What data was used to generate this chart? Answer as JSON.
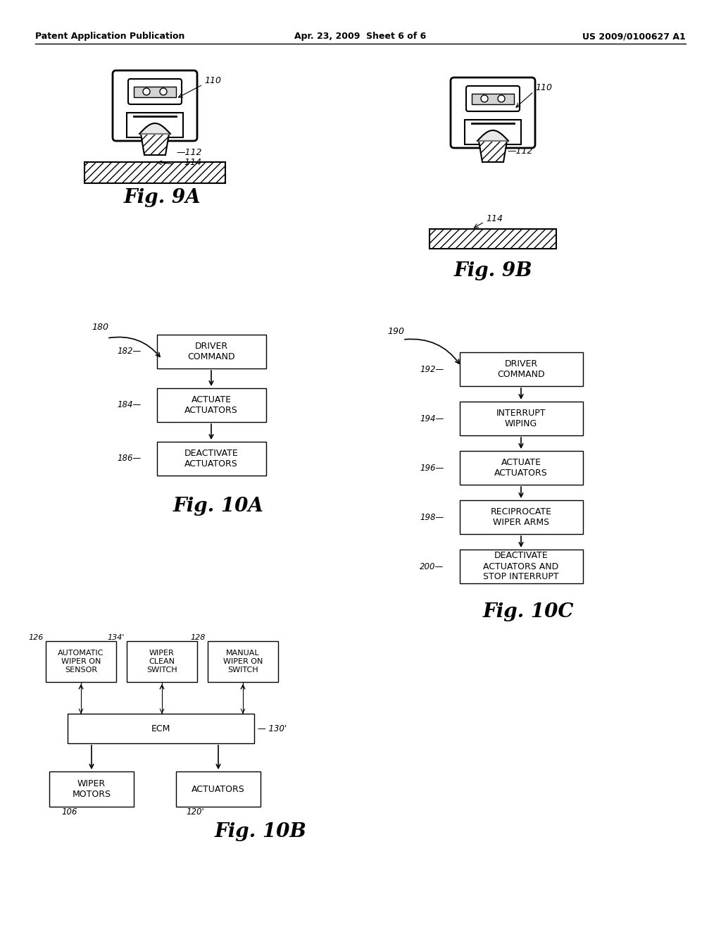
{
  "header_left": "Patent Application Publication",
  "header_mid": "Apr. 23, 2009  Sheet 6 of 6",
  "header_right": "US 2009/0100627 A1",
  "bg_color": "#ffffff",
  "fig9a_label": "Fig. 9A",
  "fig9b_label": "Fig. 9B",
  "fig10a_label": "Fig. 10A",
  "fig10b_label": "Fig. 10B",
  "fig10c_label": "Fig. 10C",
  "flow10a": {
    "ref_num": "180",
    "boxes": [
      {
        "ref": "182",
        "text": "DRIVER\nCOMMAND"
      },
      {
        "ref": "184",
        "text": "ACTUATE\nACTUATORS"
      },
      {
        "ref": "186",
        "text": "DEACTIVATE\nACTUATORS"
      }
    ]
  },
  "flow10b": {
    "boxes_top": [
      {
        "ref": "126",
        "text": "AUTOMATIC\nWIPER ON\nSENSOR"
      },
      {
        "ref": "134'",
        "text": "WIPER\nCLEAN\nSWITCH"
      },
      {
        "ref": "128",
        "text": "MANUAL\nWIPER ON\nSWITCH"
      }
    ],
    "box_mid": {
      "ref": "130'",
      "text": "ECM"
    },
    "boxes_bot": [
      {
        "ref": "106",
        "text": "WIPER\nMOTORS"
      },
      {
        "ref": "120'",
        "text": "ACTUATORS"
      }
    ]
  },
  "flow10c": {
    "ref_num": "190",
    "boxes": [
      {
        "ref": "192",
        "text": "DRIVER\nCOMMAND"
      },
      {
        "ref": "194",
        "text": "INTERRUPT\nWIPING"
      },
      {
        "ref": "196",
        "text": "ACTUATE\nACTUATORS"
      },
      {
        "ref": "198",
        "text": "RECIPROCATE\nWIPER ARMS"
      },
      {
        "ref": "200",
        "text": "DEACTIVATE\nACTUATORS AND\nSTOP INTERRUPT"
      }
    ]
  }
}
